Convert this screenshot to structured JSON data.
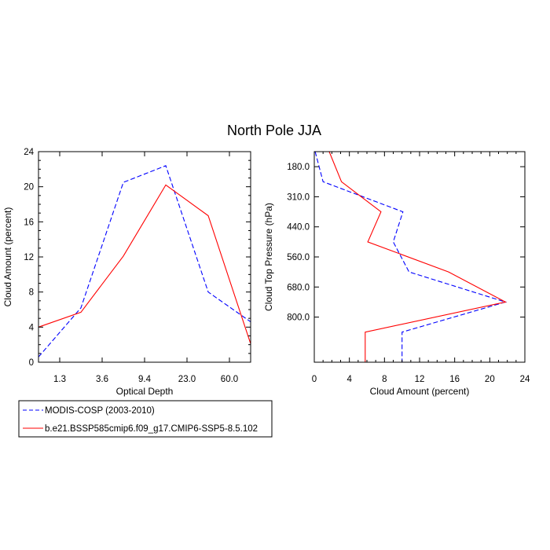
{
  "figure": {
    "title": "North Pole JJA"
  },
  "chart_data": [
    {
      "type": "line",
      "xlabel": "Optical Depth",
      "ylabel": "Cloud Amount (percent)",
      "x": [
        0,
        1,
        2,
        3,
        4,
        5
      ],
      "x_tick_labels": [
        "1.3",
        "3.6",
        "9.4",
        "23.0",
        "60.0"
      ],
      "ylim": [
        0,
        24
      ],
      "y_ticks": [
        0,
        4,
        8,
        12,
        16,
        20,
        24
      ],
      "series": [
        {
          "name": "MODIS-COSP (2003-2010)",
          "color": "#0000ff",
          "dash": "dashed",
          "values": [
            0.6,
            6.2,
            20.5,
            22.4,
            8.0,
            4.6
          ]
        },
        {
          "name": "b.e21.BSSP585cmip6.f09_g17.CMIP6-SSP5-8.5.102",
          "color": "#ff0000",
          "dash": "solid",
          "values": [
            4.0,
            5.7,
            12.1,
            20.2,
            16.7,
            2.1
          ]
        }
      ]
    },
    {
      "type": "line",
      "xlabel": "Cloud Amount (percent)",
      "ylabel": "Cloud Top Pressure (hPa)",
      "xlim": [
        0,
        24
      ],
      "x_ticks": [
        0,
        4,
        8,
        12,
        16,
        20,
        24
      ],
      "y_tick_labels": [
        "180.0",
        "310.0",
        "440.0",
        "560.0",
        "680.0",
        "800.0"
      ],
      "y_tick_positions": [
        1,
        2,
        3,
        4,
        5,
        6
      ],
      "y": [
        0,
        1,
        2,
        3,
        4,
        5,
        6,
        7
      ],
      "series": [
        {
          "name": "MODIS-COSP (2003-2010)",
          "color": "#0000ff",
          "dash": "dashed",
          "values": [
            0.1,
            1.0,
            10.1,
            9.0,
            10.8,
            21.8,
            10.0,
            10.0
          ]
        },
        {
          "name": "b.e21.BSSP585cmip6.f09_g17.CMIP6-SSP5-8.5.102",
          "color": "#ff0000",
          "dash": "solid",
          "values": [
            1.7,
            3.1,
            7.6,
            6.1,
            15.3,
            21.8,
            5.8,
            5.8
          ]
        }
      ]
    }
  ],
  "legend": {
    "placement": "bottom-left",
    "entries": [
      {
        "label": "MODIS-COSP (2003-2010)",
        "color": "#0000ff",
        "dash": "dashed"
      },
      {
        "label": "b.e21.BSSP585cmip6.f09_g17.CMIP6-SSP5-8.5.102",
        "color": "#ff0000",
        "dash": "solid"
      }
    ]
  }
}
